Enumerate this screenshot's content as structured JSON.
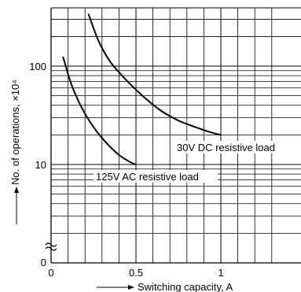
{
  "chart_data": {
    "type": "line",
    "xlabel": "Switching capacity, A",
    "ylabel": "No. of operations, ×10⁴",
    "x_ticks": [
      "0",
      "0.5",
      "1"
    ],
    "y_ticks": [
      "100",
      "10",
      "0"
    ],
    "xlim": [
      0,
      1.3
    ],
    "ylim_log": [
      1,
      500
    ],
    "y_scale": "log",
    "axis_break": "≈",
    "grid": true,
    "series": [
      {
        "name": "30V DC resistive load",
        "x": [
          0.22,
          0.28,
          0.35,
          0.45,
          0.55,
          0.65,
          0.75,
          0.85,
          0.95,
          1.0
        ],
        "y": [
          340,
          180,
          110,
          70,
          48,
          35,
          28,
          24,
          21,
          20
        ]
      },
      {
        "name": "125V AC resistive load",
        "x": [
          0.07,
          0.12,
          0.18,
          0.25,
          0.32,
          0.4,
          0.47,
          0.5
        ],
        "y": [
          125,
          65,
          38,
          24,
          17,
          12.5,
          10.5,
          10
        ]
      }
    ]
  }
}
